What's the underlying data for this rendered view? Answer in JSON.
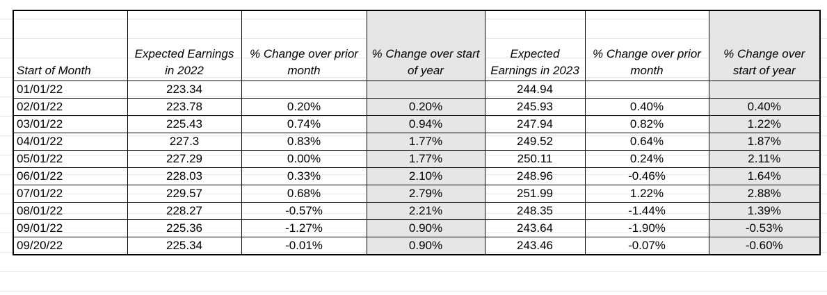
{
  "headers": [
    "Start of Month",
    "Expected Earnings in 2022",
    "% Change over prior month",
    "% Change over start of year",
    "Expected Earnings in 2023",
    "% Change over prior month",
    "% Change over start of year"
  ],
  "rows": [
    [
      "01/01/22",
      "223.34",
      "",
      "",
      "244.94",
      "",
      ""
    ],
    [
      "02/01/22",
      "223.78",
      "0.20%",
      "0.20%",
      "245.93",
      "0.40%",
      "0.40%"
    ],
    [
      "03/01/22",
      "225.43",
      "0.74%",
      "0.94%",
      "247.94",
      "0.82%",
      "1.22%"
    ],
    [
      "04/01/22",
      "227.3",
      "0.83%",
      "1.77%",
      "249.52",
      "0.64%",
      "1.87%"
    ],
    [
      "05/01/22",
      "227.29",
      "0.00%",
      "1.77%",
      "250.11",
      "0.24%",
      "2.11%"
    ],
    [
      "06/01/22",
      "228.03",
      "0.33%",
      "2.10%",
      "248.96",
      "-0.46%",
      "1.64%"
    ],
    [
      "07/01/22",
      "229.57",
      "0.68%",
      "2.79%",
      "251.99",
      "1.22%",
      "2.88%"
    ],
    [
      "08/01/22",
      "228.27",
      "-0.57%",
      "2.21%",
      "248.35",
      "-1.44%",
      "1.39%"
    ],
    [
      "09/01/22",
      "225.36",
      "-1.27%",
      "0.90%",
      "243.64",
      "-1.90%",
      "-0.53%"
    ],
    [
      "09/20/22",
      "225.34",
      "-0.01%",
      "0.90%",
      "243.46",
      "-0.07%",
      "-0.60%"
    ]
  ],
  "colors": {
    "shaded_column_fill": "#e6e6e6",
    "border": "#000000"
  }
}
